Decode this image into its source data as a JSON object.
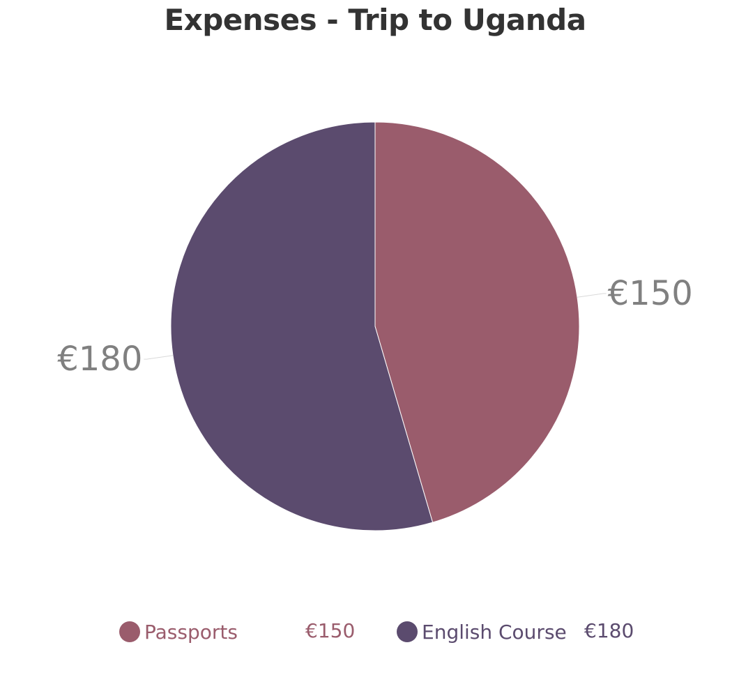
{
  "title": "Expenses - Trip to Uganda",
  "colors": {
    "passports": "#9a5c6c",
    "english_course": "#5b4b6e",
    "label_text": "#808080",
    "title_text": "#333333",
    "connector": "#d9d9d9",
    "slice_border": "#ffffff"
  },
  "chart_data": {
    "type": "pie",
    "title": "Expenses - Trip to Uganda",
    "currency": "€",
    "slices": [
      {
        "name": "Passports",
        "value": 150,
        "label": "€150",
        "color": "#9a5c6c"
      },
      {
        "name": "English Course",
        "value": 180,
        "label": "€180",
        "color": "#5b4b6e"
      }
    ],
    "legend_position": "bottom"
  },
  "legend": {
    "items": [
      {
        "name": "Passports",
        "value_label": "€150"
      },
      {
        "name": "English Course",
        "value_label": "€180"
      }
    ]
  }
}
